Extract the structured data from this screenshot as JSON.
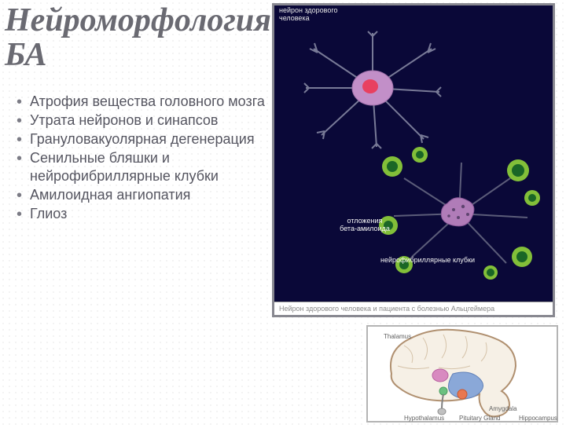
{
  "title_line1": "Нейроморфология",
  "title_line2": "БА",
  "bullets": [
    "Атрофия вещества головного мозга",
    "Утрата нейронов и синапсов",
    "Грануловакуолярная дегенерация",
    "Сенильные бляшки и нейрофибриллярные клубки",
    "Амилоидная ангиопатия",
    "Глиоз"
  ],
  "neuron_panel": {
    "top_label": "нейрон здорового\nчеловека",
    "caption": "Нейрон здорового человека и пациента с болезнью Альцгеймера",
    "label_amyloid_top": "отложения",
    "label_amyloid_bottom": "бета-амилоида",
    "label_tangles": "нейрофибриллярные клубки",
    "colors": {
      "background": "#0a0838",
      "neuron_body": "#c28fc8",
      "neuron_core": "#e84060",
      "dendrite": "#8c8ea8",
      "plaque": "#8fd43a",
      "dark_green": "#1a6626"
    }
  },
  "brain_panel": {
    "colors": {
      "cortex_outline": "#b09070",
      "cortex_fill": "#f6f0e6",
      "hippocampus": "#8aa8d8",
      "thalamus": "#d88ac0",
      "amygdala": "#e87850",
      "hypothalamus": "#6ac080"
    },
    "labels": {
      "thalamus": "Thalamus",
      "amygdala": "Amygdala",
      "hypothalamus": "Hypothalamus",
      "pituitary": "Pituitary Gland",
      "hippocampus": "Hippocampus"
    }
  },
  "style": {
    "title_color": "#6a6a72",
    "title_fontsize": 42,
    "bullet_fontsize": 18,
    "bullet_color": "#555560"
  }
}
